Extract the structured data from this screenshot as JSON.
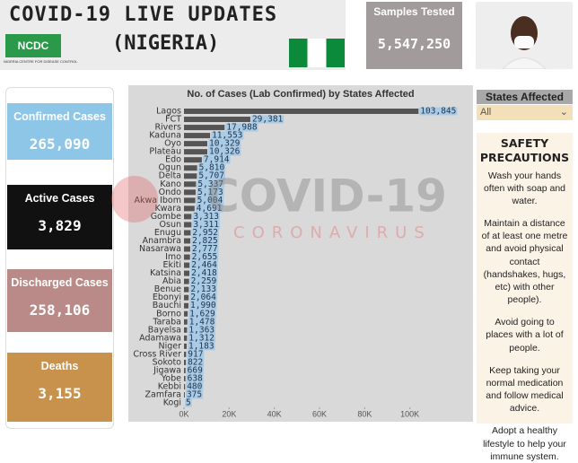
{
  "header": {
    "title": "COVID-19 LIVE UPDATES",
    "subtitle": "(NIGERIA)",
    "logo": "NCDC",
    "logo_caption": "NIGERIA CENTRE FOR DISEASE CONTROL"
  },
  "samples": {
    "label": "Samples Tested",
    "value": "5,547,250"
  },
  "cards": [
    {
      "label": "Confirmed Cases",
      "value": "265,090"
    },
    {
      "label": "Active Cases",
      "value": "3,829"
    },
    {
      "label": "Discharged Cases",
      "value": "258,106"
    },
    {
      "label": "Deaths",
      "value": "3,155"
    }
  ],
  "watermark": {
    "title": "COVID-19",
    "subtitle": "CORONAVIRUS"
  },
  "filter": {
    "label": "States Affected",
    "selected": "All"
  },
  "precautions": {
    "title": "SAFETY PRECAUTIONS",
    "items": [
      "Wash your hands often with soap and water.",
      "Maintain a distance of at least one metre and avoid physical contact (handshakes, hugs, etc) with other people).",
      "Avoid going to places with a lot of people.",
      "Keep taking your normal medication and follow medical advice.",
      "Adopt a healthy lifestyle to help your immune system."
    ]
  },
  "chart_data": {
    "type": "bar",
    "orientation": "horizontal",
    "title": "No. of Cases (Lab Confirmed) by States Affected",
    "categories": [
      "Lagos",
      "FCT",
      "Rivers",
      "Kaduna",
      "Oyo",
      "Plateau",
      "Edo",
      "Ogun",
      "Delta",
      "Kano",
      "Ondo",
      "Akwa Ibom",
      "Kwara",
      "Gombe",
      "Osun",
      "Enugu",
      "Anambra",
      "Nasarawa",
      "Imo",
      "Ekiti",
      "Katsina",
      "Abia",
      "Benue",
      "Ebonyi",
      "Bauchi",
      "Borno",
      "Taraba",
      "Bayelsa",
      "Adamawa",
      "Niger",
      "Cross River",
      "Sokoto",
      "Jigawa",
      "Yobe",
      "Kebbi",
      "Zamfara",
      "Kogi"
    ],
    "values": [
      103845,
      29381,
      17988,
      11553,
      10329,
      10326,
      7914,
      5810,
      5707,
      5337,
      5173,
      5004,
      4691,
      3313,
      3311,
      2952,
      2825,
      2777,
      2655,
      2464,
      2418,
      2259,
      2133,
      2064,
      1990,
      1629,
      1478,
      1363,
      1312,
      1183,
      917,
      822,
      669,
      638,
      480,
      375,
      5
    ],
    "value_labels": [
      "103,845",
      "29,381",
      "17,988",
      "11,553",
      "10,329",
      "10,326",
      "7,914",
      "5,810",
      "5,707",
      "5,337",
      "5,173",
      "5,004",
      "4,691",
      "3,313",
      "3,311",
      "2,952",
      "2,825",
      "2,777",
      "2,655",
      "2,464",
      "2,418",
      "2,259",
      "2,133",
      "2,064",
      "1,990",
      "1,629",
      "1,478",
      "1,363",
      "1,312",
      "1,183",
      "917",
      "822",
      "669",
      "638",
      "480",
      "375",
      "5"
    ],
    "color": "#555555",
    "xlim": [
      0,
      120000
    ],
    "xticks": [
      {
        "value": 0,
        "label": "0K"
      },
      {
        "value": 20000,
        "label": "20K"
      },
      {
        "value": 40000,
        "label": "40K"
      },
      {
        "value": 60000,
        "label": "60K"
      },
      {
        "value": 80000,
        "label": "80K"
      },
      {
        "value": 100000,
        "label": "100K"
      }
    ]
  }
}
